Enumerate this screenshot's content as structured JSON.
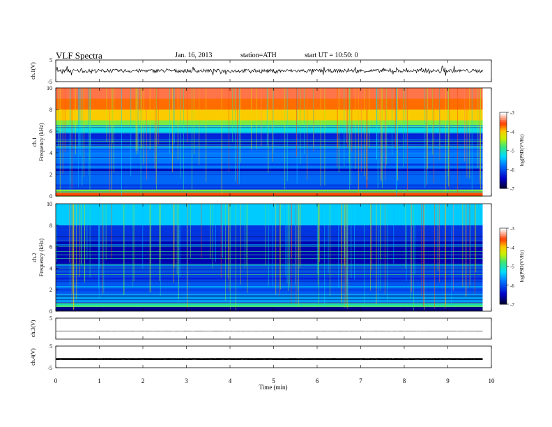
{
  "header": {
    "title": "VLF Spectra",
    "date": "Jan. 16, 2013",
    "station": "station=ATH",
    "start_ut": "start UT =  10:50: 0"
  },
  "chart_data": [
    {
      "type": "line",
      "panel": "ch1-waveform",
      "ylabel": "ch.1(V)",
      "yticks": [
        "5",
        "-5"
      ],
      "ylim": [
        -5,
        5
      ],
      "xlim": [
        0,
        10
      ],
      "trace_amplitude_v": 0.8,
      "x_end_min": 9.8
    },
    {
      "type": "heatmap",
      "panel": "ch1-spectrogram",
      "ylabel": "ch.1",
      "ylabel2": "Frequency (kHz)",
      "yticks": [
        "0",
        "2",
        "4",
        "6",
        "8",
        "10"
      ],
      "ylim": [
        0,
        10
      ],
      "xlim": [
        0,
        10
      ],
      "colorbar": {
        "label": "log(PSD(V²/Hz)",
        "ticks": [
          "-3",
          "-4",
          "-5",
          "-6",
          "-7"
        ],
        "range": [
          -7,
          -3
        ]
      },
      "bands_khz_level": [
        [
          0,
          0.3,
          -3.6
        ],
        [
          0.3,
          0.6,
          -4.6
        ],
        [
          0.6,
          1.0,
          -6.2
        ],
        [
          1.0,
          2.2,
          -5.9
        ],
        [
          2.2,
          2.6,
          -6.6
        ],
        [
          2.6,
          4.6,
          -5.8
        ],
        [
          4.6,
          5.8,
          -6.3
        ],
        [
          5.8,
          6.4,
          -5.2
        ],
        [
          6.4,
          7.0,
          -4.6
        ],
        [
          7.0,
          8.0,
          -4.0
        ],
        [
          8.0,
          9.0,
          -3.7
        ],
        [
          9.0,
          10.0,
          -3.4
        ]
      ]
    },
    {
      "type": "heatmap",
      "panel": "ch2-spectrogram",
      "ylabel": "ch.2",
      "ylabel2": "Frequency (kHz)",
      "yticks": [
        "0",
        "2",
        "4",
        "6",
        "8",
        "10"
      ],
      "ylim": [
        0,
        10
      ],
      "xlim": [
        0,
        10
      ],
      "colorbar": {
        "label": "log(PSD(V²/Hz)",
        "ticks": [
          "-3",
          "-4",
          "-5",
          "-6",
          "-7"
        ],
        "range": [
          -7,
          -3
        ]
      },
      "bands_khz_level": [
        [
          0,
          0.4,
          -6.8
        ],
        [
          0.4,
          0.8,
          -4.8
        ],
        [
          0.8,
          1.6,
          -5.6
        ],
        [
          1.6,
          2.8,
          -6.0
        ],
        [
          2.8,
          4.2,
          -6.2
        ],
        [
          4.2,
          6.6,
          -6.6
        ],
        [
          6.6,
          8.0,
          -6.2
        ],
        [
          8.0,
          10.0,
          -5.4
        ]
      ]
    },
    {
      "type": "line",
      "panel": "ch3-waveform",
      "ylabel": "ch.3(V)",
      "yticks": [
        "5"
      ],
      "ylim": [
        -5,
        5
      ],
      "xlim": [
        0,
        10
      ],
      "trace_level_v": -1.2,
      "x_end_min": 9.8
    },
    {
      "type": "line",
      "panel": "ch4-waveform",
      "ylabel": "ch.4(V)",
      "yticks": [
        "5",
        "-5"
      ],
      "ylim": [
        -5,
        5
      ],
      "xlim": [
        0,
        10
      ],
      "trace_level_v": -1.0,
      "x_end_min": 9.8
    }
  ],
  "xaxis": {
    "label": "Time (min)",
    "ticks": [
      "0",
      "1",
      "2",
      "3",
      "4",
      "5",
      "6",
      "7",
      "8",
      "9",
      "10"
    ]
  }
}
